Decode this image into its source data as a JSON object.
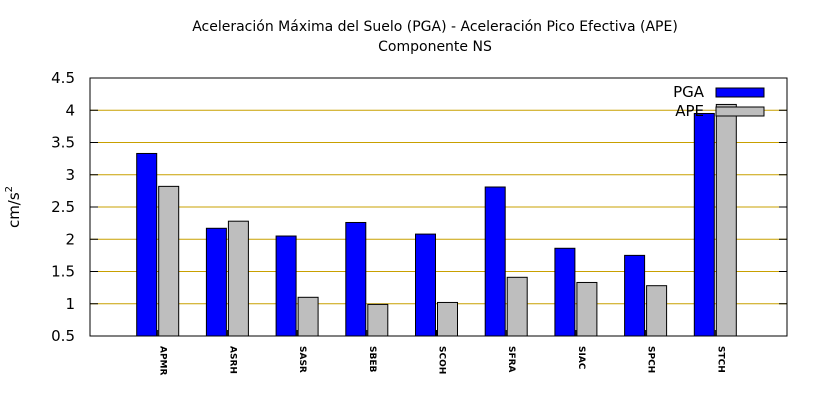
{
  "chart_data": {
    "type": "bar",
    "title": "Aceleración Máxima del Suelo (PGA) -  Aceleración Pico Efectiva (APE)",
    "subtitle": "Componente NS",
    "xlabel": "",
    "ylabel": "cm/s",
    "ylabel_superscript": "2",
    "ylim": [
      0.5,
      4.5
    ],
    "yticks": [
      "0.5",
      "1",
      "1.5",
      "2",
      "2.5",
      "3",
      "3.5",
      "4",
      "4.5"
    ],
    "ytick_values": [
      0.5,
      1,
      1.5,
      2,
      2.5,
      3,
      3.5,
      4,
      4.5
    ],
    "grid": true,
    "legend_position": "top-right",
    "categories": [
      "APMR",
      "ASRH",
      "SASR",
      "SBEB",
      "SCOH",
      "SFRA",
      "SIAC",
      "SPCH",
      "STCH"
    ],
    "series": [
      {
        "name": "PGA",
        "color": "#0000ff",
        "values": [
          3.33,
          2.17,
          2.05,
          2.26,
          2.08,
          2.81,
          1.86,
          1.75,
          3.95
        ]
      },
      {
        "name": "APE",
        "color": "#bebebe",
        "values": [
          2.82,
          2.28,
          1.1,
          0.99,
          1.02,
          1.41,
          1.33,
          1.28,
          4.09
        ]
      }
    ],
    "gridline_color": "#c8a000"
  }
}
